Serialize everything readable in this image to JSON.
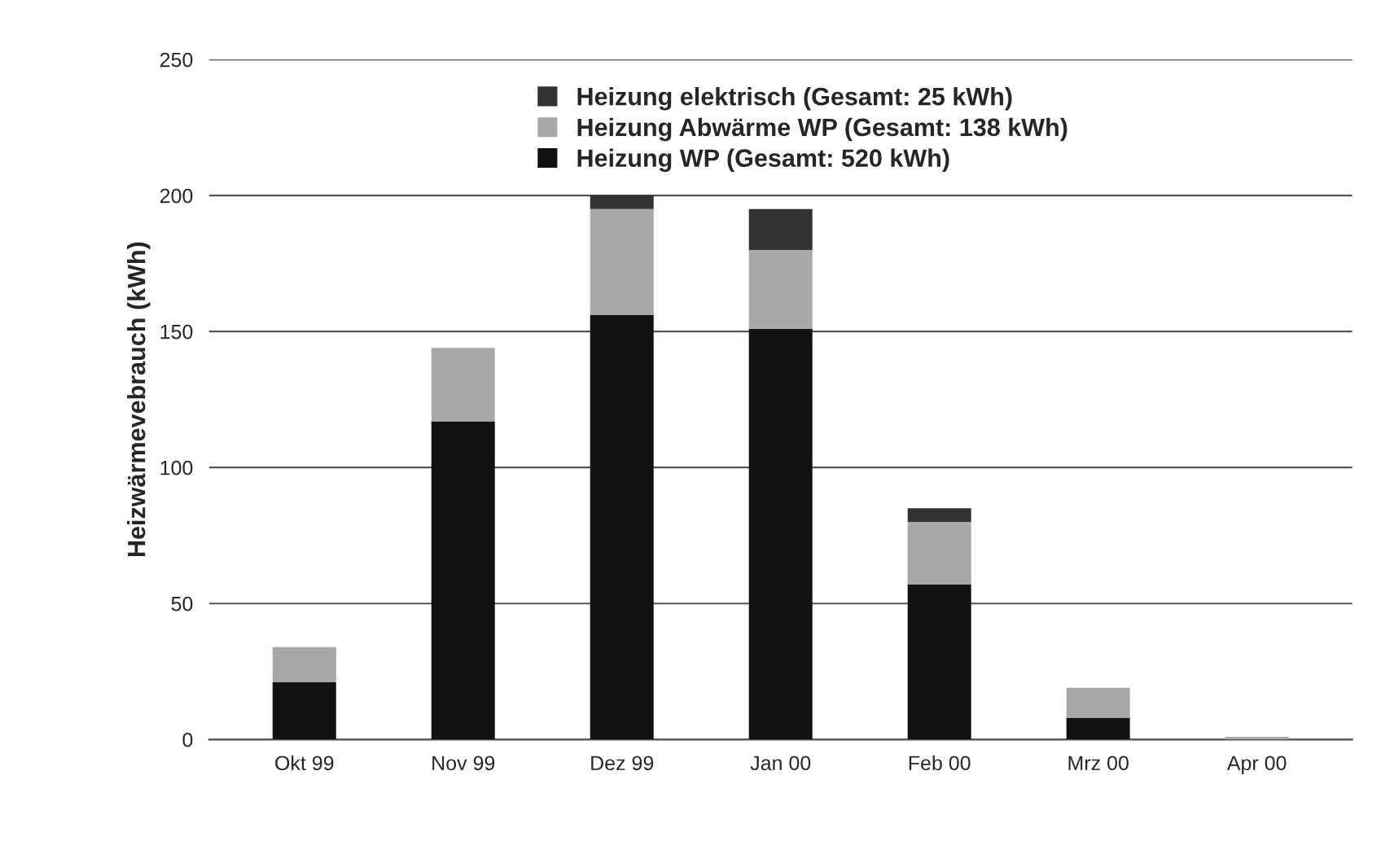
{
  "chart_data": {
    "type": "bar",
    "stacked": true,
    "ylabel": "Heizwärmevebrauch (kWh)",
    "categories": [
      "Okt 99",
      "Nov 99",
      "Dez 99",
      "Jan 00",
      "Feb 00",
      "Mrz 00",
      "Apr 00"
    ],
    "series": [
      {
        "name": "Heizung WP (Gesamt: 520 kWh)",
        "color": "#111111",
        "values": [
          21,
          117,
          156,
          151,
          57,
          8,
          null
        ]
      },
      {
        "name": "Heizung Abwärme WP (Gesamt: 138 kWh)",
        "color": "#a8a8a8",
        "values": [
          13,
          27,
          39,
          29,
          23,
          11,
          1
        ]
      },
      {
        "name": "Heizung elektrisch (Gesamt: 25 kWh)",
        "color": "#333333",
        "values": [
          null,
          null,
          5,
          15,
          5,
          null,
          null
        ]
      }
    ],
    "ylim": [
      0,
      250
    ],
    "yticks": [
      0,
      50,
      100,
      150,
      200,
      250
    ],
    "grid": "y",
    "legend": "top"
  }
}
